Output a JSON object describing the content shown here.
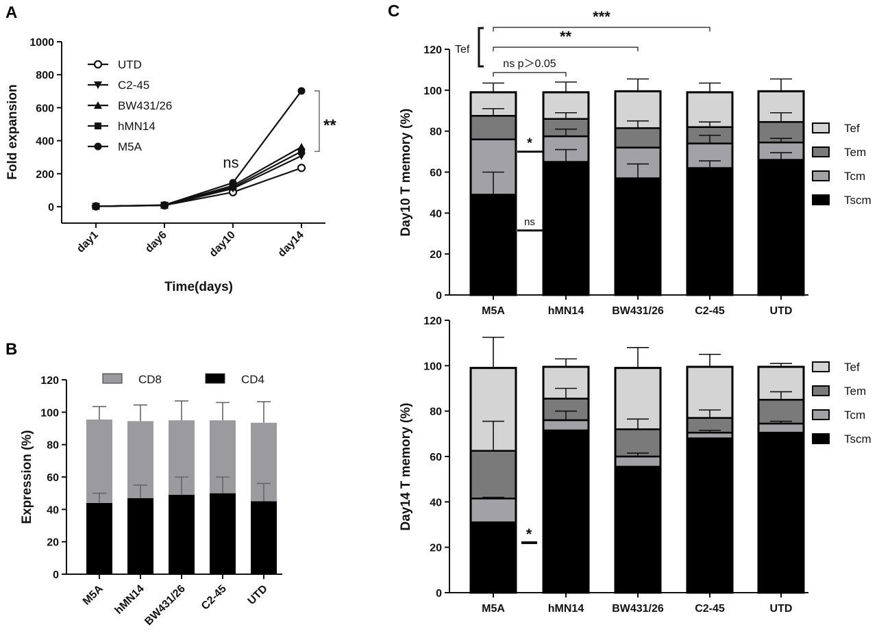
{
  "panels": {
    "a": "A",
    "b": "B",
    "c": "C"
  },
  "chart_data": [
    {
      "id": "A",
      "type": "line",
      "title": "",
      "xlabel": "Time(days)",
      "ylabel": "Fold expansion",
      "categories": [
        "day1",
        "day6",
        "day10",
        "day14"
      ],
      "ylim": [
        0,
        1000
      ],
      "yticks": [
        0,
        200,
        400,
        600,
        800,
        1000
      ],
      "series": [
        {
          "name": "UTD",
          "marker": "circle-open",
          "values": [
            2,
            8,
            88,
            235
          ]
        },
        {
          "name": "C2-45",
          "marker": "triangle-down",
          "values": [
            2,
            8,
            110,
            308
          ]
        },
        {
          "name": "BW431/26",
          "marker": "triangle-up",
          "values": [
            2,
            9,
            128,
            362
          ]
        },
        {
          "name": "hMN14",
          "marker": "square",
          "values": [
            2,
            9,
            118,
            335
          ]
        },
        {
          "name": "M5A",
          "marker": "circle",
          "values": [
            2,
            10,
            145,
            702
          ]
        }
      ],
      "annotations": {
        "day10": "ns",
        "day14": "**"
      }
    },
    {
      "id": "B",
      "type": "bar",
      "stacked": true,
      "xlabel": "",
      "ylabel": "Expression (%)",
      "categories": [
        "M5A",
        "hMN14",
        "BW431/26",
        "C2-45",
        "UTD"
      ],
      "ylim": [
        0,
        120
      ],
      "yticks": [
        0,
        20,
        40,
        60,
        80,
        100,
        120
      ],
      "series": [
        {
          "name": "CD4",
          "color": "#000000",
          "values": [
            44,
            47,
            49,
            50,
            45
          ],
          "errors": [
            6,
            8,
            11,
            10,
            11
          ]
        },
        {
          "name": "CD8",
          "color": "#9b9b9f",
          "values": [
            51.5,
            47.5,
            46,
            45,
            48.5
          ],
          "errors": [
            8,
            10,
            12,
            11,
            13
          ]
        }
      ]
    },
    {
      "id": "C-day10",
      "type": "bar",
      "stacked": true,
      "xlabel": "",
      "ylabel": "Day10 T memory (%)",
      "categories": [
        "M5A",
        "hMN14",
        "BW431/26",
        "C2-45",
        "UTD"
      ],
      "ylim": [
        0,
        120
      ],
      "yticks": [
        0,
        20,
        40,
        60,
        80,
        100,
        120
      ],
      "series": [
        {
          "name": "Tscm",
          "color": "#000000",
          "values": [
            49,
            65,
            57,
            62,
            66
          ],
          "errors": [
            11,
            6,
            7,
            3.5,
            3.5
          ]
        },
        {
          "name": "Tcm",
          "color": "#a2a2a6",
          "values": [
            27,
            12.5,
            15,
            12,
            8.5
          ],
          "errors": [
            0,
            3.5,
            0,
            4,
            2
          ]
        },
        {
          "name": "Tem",
          "color": "#7a7a7a",
          "values": [
            11.5,
            8.5,
            9.5,
            8,
            10
          ],
          "errors": [
            3.5,
            3,
            3.5,
            2.5,
            4.5
          ]
        },
        {
          "name": "Tef",
          "color": "#d4d4d4",
          "values": [
            11.5,
            13,
            18,
            17,
            15
          ],
          "errors": [
            4.5,
            5,
            6,
            4.5,
            6
          ]
        }
      ],
      "annotations": {
        "bracket_label": "Tef",
        "brackets": [
          {
            "from": "M5A",
            "to": "hMN14",
            "label": "ns p＞0.05"
          },
          {
            "from": "M5A",
            "to": "BW431/26",
            "label": "**"
          },
          {
            "from": "M5A",
            "to": "C2-45",
            "label": "***"
          }
        ],
        "side_marks": [
          {
            "label": "*",
            "value": 70
          },
          {
            "label": "ns",
            "value": 31.5
          }
        ]
      }
    },
    {
      "id": "C-day14",
      "type": "bar",
      "stacked": true,
      "xlabel": "",
      "ylabel": "Day14 T memory (%)",
      "categories": [
        "M5A",
        "hMN14",
        "BW431/26",
        "C2-45",
        "UTD"
      ],
      "ylim": [
        0,
        120
      ],
      "yticks": [
        0,
        20,
        40,
        60,
        80,
        100,
        120
      ],
      "series": [
        {
          "name": "Tscm",
          "color": "#000000",
          "values": [
            31,
            71.5,
            55.5,
            68,
            70.5
          ],
          "errors": [
            0,
            0,
            0,
            0,
            0
          ]
        },
        {
          "name": "Tcm",
          "color": "#a2a2a6",
          "values": [
            10.5,
            4.5,
            4.5,
            2.5,
            4
          ],
          "errors": [
            0.5,
            4,
            1.5,
            1,
            1
          ]
        },
        {
          "name": "Tem",
          "color": "#7a7a7a",
          "values": [
            21,
            9.5,
            12,
            6.5,
            10.5
          ],
          "errors": [
            13,
            4.5,
            4.5,
            3.5,
            3.5
          ]
        },
        {
          "name": "Tef",
          "color": "#d4d4d4",
          "values": [
            36.5,
            14,
            27,
            22.5,
            14.5
          ],
          "errors": [
            13.5,
            3.5,
            9,
            5.5,
            1.5
          ]
        }
      ],
      "annotations": {
        "side_marks": [
          {
            "label": "*",
            "value": 22
          }
        ]
      }
    }
  ]
}
